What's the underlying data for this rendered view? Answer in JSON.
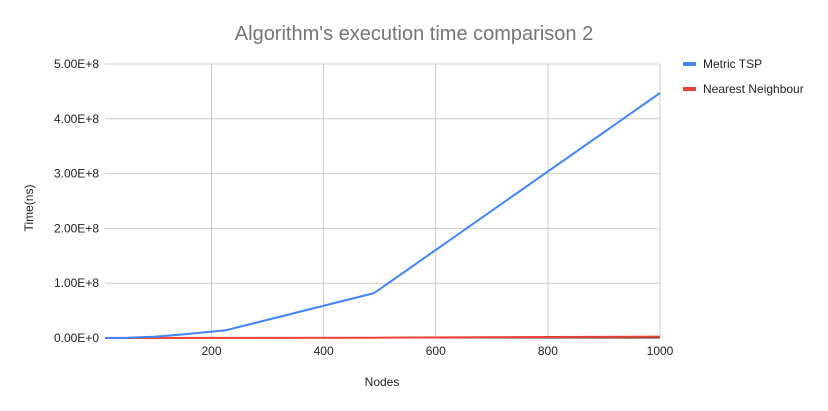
{
  "chart_data": {
    "type": "line",
    "title": "Algorithm's execution time comparison 2",
    "xlabel": "Nodes",
    "ylabel": "Time(ns)",
    "xlim": [
      10,
      1000
    ],
    "ylim": [
      0,
      500000000
    ],
    "x_ticks": [
      200,
      400,
      600,
      800,
      1000
    ],
    "x_tick_labels": [
      "200",
      "400",
      "600",
      "800",
      "1000"
    ],
    "y_ticks": [
      0,
      100000000,
      200000000,
      300000000,
      400000000,
      500000000
    ],
    "y_tick_labels": [
      "0.00E+0",
      "1.00E+8",
      "2.00E+8",
      "3.00E+8",
      "4.00E+8",
      "5.00E+8"
    ],
    "grid": true,
    "legend_position": "right",
    "series": [
      {
        "name": "Metric TSP",
        "color": "#4285f4",
        "x": [
          10,
          50,
          100,
          150,
          225,
          490,
          1000
        ],
        "y": [
          0,
          500000,
          2500000,
          6500000,
          14000000,
          82000000,
          447000000
        ]
      },
      {
        "name": "Nearest Neighbour",
        "color": "#ea4335",
        "x": [
          10,
          225,
          490,
          1000
        ],
        "y": [
          0,
          100000,
          600000,
          2600000
        ]
      }
    ]
  }
}
